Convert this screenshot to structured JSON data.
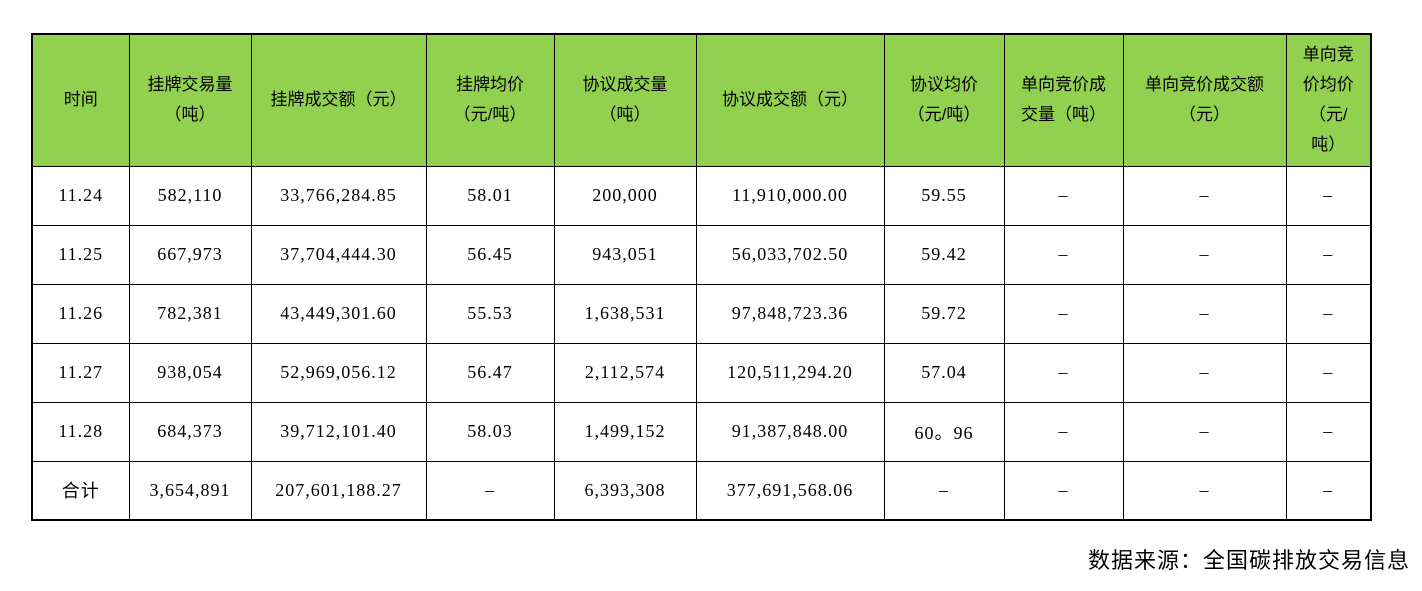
{
  "colors": {
    "header_bg": "#92D050",
    "border": "#000000",
    "text": "#000000",
    "background": "#FFFFFF"
  },
  "chart_data": {
    "type": "table",
    "columns": [
      "时间",
      "挂牌交易量（吨）",
      "挂牌成交额（元）",
      "挂牌均价（元/吨）",
      "协议成交量（吨）",
      "协议成交额（元）",
      "协议均价（元/吨）",
      "单向竞价成交量（吨）",
      "单向竞价成交额（元）",
      "单向竞价均价（元/吨）"
    ],
    "columns_display": [
      "时间",
      "挂牌交易量\n（吨）",
      "挂牌成交额（元）",
      "挂牌均价\n（元/吨）",
      "协议成交量\n（吨）",
      "协议成交额（元）",
      "协议均价\n（元/吨）",
      "单向竞价成\n交量（吨）",
      "单向竞价成交额\n（元）",
      "单向竞\n价均价\n（元/\n吨）"
    ],
    "rows": [
      [
        "11.24",
        "582,110",
        "33,766,284.85",
        "58.01",
        "200,000",
        "11,910,000.00",
        "59.55",
        "–",
        "–",
        "–"
      ],
      [
        "11.25",
        "667,973",
        "37,704,444.30",
        "56.45",
        "943,051",
        "56,033,702.50",
        "59.42",
        "–",
        "–",
        "–"
      ],
      [
        "11.26",
        "782,381",
        "43,449,301.60",
        "55.53",
        "1,638,531",
        "97,848,723.36",
        "59.72",
        "–",
        "–",
        "–"
      ],
      [
        "11.27",
        "938,054",
        "52,969,056.12",
        "56.47",
        "2,112,574",
        "120,511,294.20",
        "57.04",
        "–",
        "–",
        "–"
      ],
      [
        "11.28",
        "684,373",
        "39,712,101.40",
        "58.03",
        "1,499,152",
        "91,387,848.00",
        "60。96",
        "–",
        "–",
        "–"
      ],
      [
        "合计",
        "3,654,891",
        "207,601,188.27",
        "–",
        "6,393,308",
        "377,691,568.06",
        "–",
        "–",
        "–",
        "–"
      ]
    ],
    "total_row_label": "合计",
    "source_note": "数据来源：全国碳排放交易信息"
  }
}
